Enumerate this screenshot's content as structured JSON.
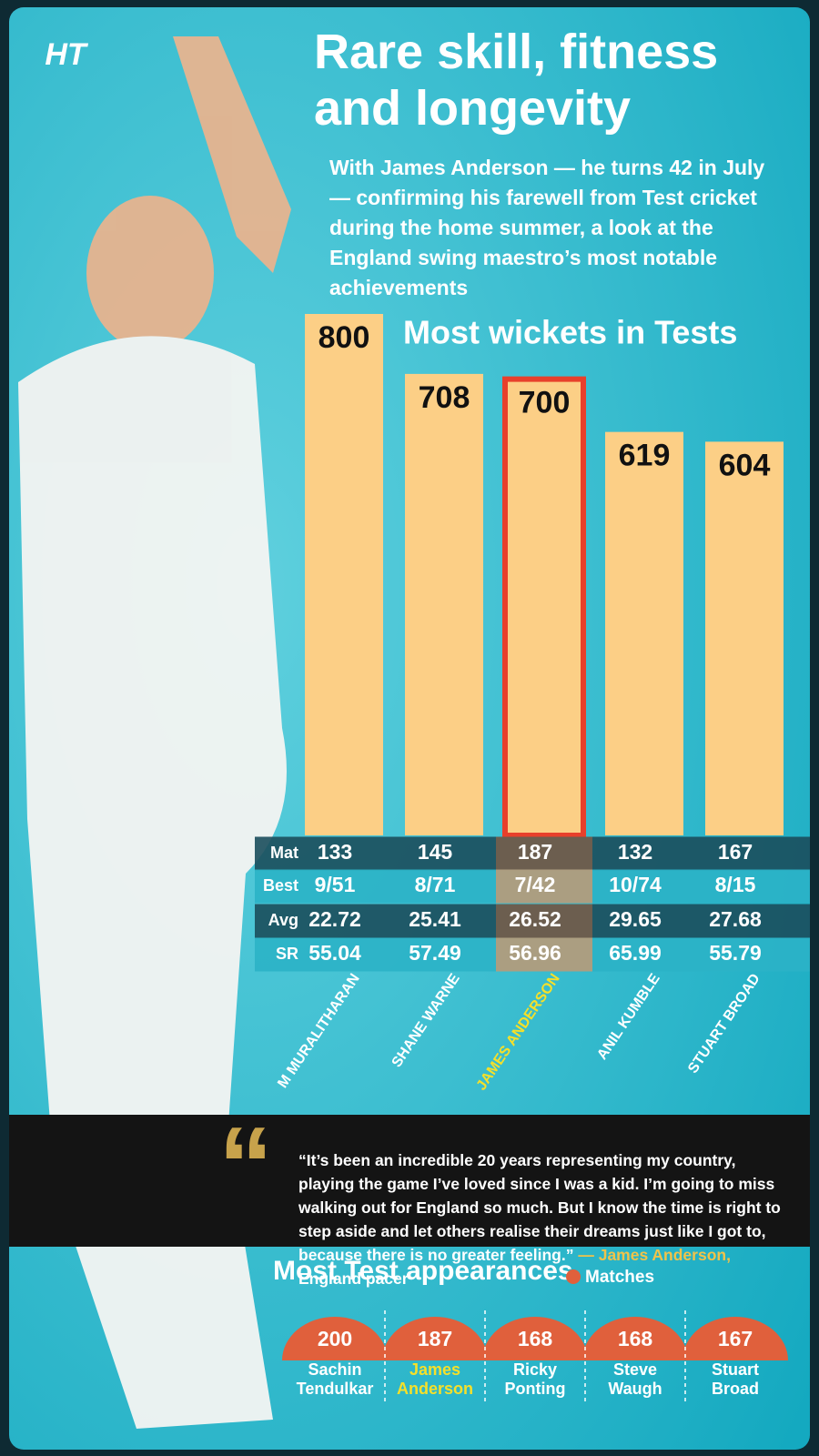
{
  "header": {
    "logo": "HT",
    "title": "Rare skill, fitness and longevity",
    "subtitle": "With James Anderson — he turns 42 in July — confirming his farewell from Test cricket during the home summer, a look at the England swing maestro’s most notable achievements"
  },
  "chart_data": [
    {
      "type": "bar",
      "title": "Most wickets in Tests",
      "categories": [
        "M MURALITHARAN",
        "SHANE WARNE",
        "JAMES ANDERSON",
        "ANIL KUMBLE",
        "STUART BROAD"
      ],
      "values": [
        800,
        708,
        700,
        619,
        604
      ],
      "color": "#fccf86",
      "highlight_index": 2,
      "highlight_color": "#e8402b"
    },
    {
      "type": "semicircle",
      "title": "Most Test appearances",
      "legend": "Matches",
      "categories": [
        "Sachin Tendulkar",
        "James Anderson",
        "Ricky Ponting",
        "Steve Waugh",
        "Stuart Broad"
      ],
      "values": [
        200,
        187,
        168,
        168,
        167
      ],
      "color": "#e0603c",
      "highlight_index": 1
    }
  ],
  "stats": {
    "row_labels": [
      "Mat",
      "Best",
      "Avg",
      "SR"
    ],
    "rows": [
      [
        133,
        145,
        187,
        132,
        167
      ],
      [
        "9/51",
        "8/71",
        "7/42",
        "10/74",
        "8/15"
      ],
      [
        22.72,
        25.41,
        26.52,
        29.65,
        27.68
      ],
      [
        55.04,
        57.49,
        56.96,
        65.99,
        55.79
      ]
    ]
  },
  "quote": {
    "text": "“It’s been an incredible 20 years representing my country, playing the game I’ve loved since I was a kid. I’m going to miss walking out for England so much. But I know the time is right to step aside and let others realise their dreams just like I got to, because there is no greater feeling.”",
    "author": "— James Anderson,",
    "role": "England pacer"
  }
}
